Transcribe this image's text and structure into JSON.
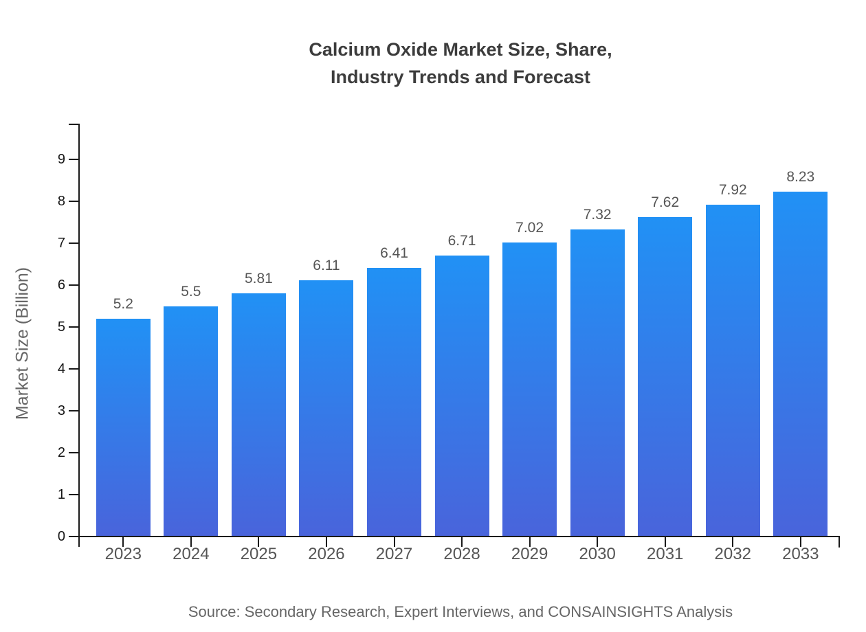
{
  "title": {
    "line1": "Calcium Oxide Market Size, Share,",
    "line2": "Industry Trends and Forecast"
  },
  "source": "Source: Secondary Research, Expert Interviews, and CONSAINSIGHTS Analysis",
  "chart_data": {
    "type": "bar",
    "title": "Calcium Oxide Market Size, Share, Industry Trends and Forecast",
    "categories": [
      "2023",
      "2024",
      "2025",
      "2026",
      "2027",
      "2028",
      "2029",
      "2030",
      "2031",
      "2032",
      "2033"
    ],
    "values": [
      5.2,
      5.5,
      5.81,
      6.11,
      6.41,
      6.71,
      7.02,
      7.32,
      7.62,
      7.92,
      8.23
    ],
    "value_labels": [
      "5.2",
      "5.5",
      "5.81",
      "6.11",
      "6.41",
      "6.71",
      "7.02",
      "7.32",
      "7.62",
      "7.92",
      "8.23"
    ],
    "xlabel": "",
    "ylabel": "Market Size (Billion)",
    "ylim": [
      0,
      9.85
    ],
    "yticks": [
      0,
      1,
      2,
      3,
      4,
      5,
      6,
      7,
      8,
      9
    ],
    "grid": false,
    "legend": false,
    "colors": {
      "bar_gradient_top": "#2191f5",
      "bar_gradient_bottom": "#4964db",
      "axis": "#1a1a1a",
      "title_text": "#3c3c3c",
      "tick_text": "#555555",
      "value_label_text": "#555555",
      "axis_title_text": "#666666",
      "source_text": "#666666"
    }
  }
}
